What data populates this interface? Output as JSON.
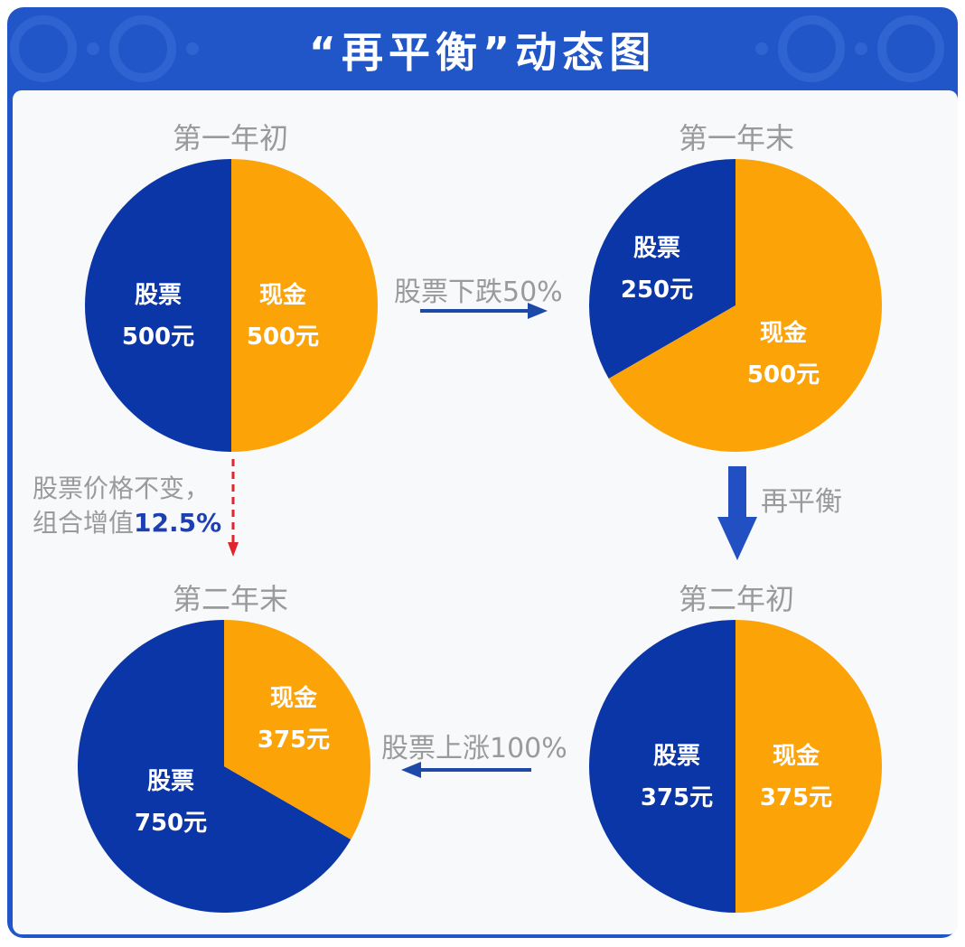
{
  "title": "“再平衡”动态图",
  "colors": {
    "stock": "#0b36a8",
    "cash": "#fba307",
    "frame": "#2156c8",
    "arrow": "#1d4aa8",
    "dashed": "#e0252d"
  },
  "panels": [
    {
      "id": "y1_start",
      "label": "第一年初",
      "slices": [
        {
          "name": "股票",
          "value": "500元",
          "amount": 500
        },
        {
          "name": "现金",
          "value": "500元",
          "amount": 500
        }
      ]
    },
    {
      "id": "y1_end",
      "label": "第一年末",
      "slices": [
        {
          "name": "股票",
          "value": "250元",
          "amount": 250
        },
        {
          "name": "现金",
          "value": "500元",
          "amount": 500
        }
      ]
    },
    {
      "id": "y2_start",
      "label": "第二年初",
      "slices": [
        {
          "name": "股票",
          "value": "375元",
          "amount": 375
        },
        {
          "name": "现金",
          "value": "375元",
          "amount": 375
        }
      ]
    },
    {
      "id": "y2_end",
      "label": "第二年末",
      "slices": [
        {
          "name": "股票",
          "value": "750元",
          "amount": 750
        },
        {
          "name": "现金",
          "value": "375元",
          "amount": 375
        }
      ]
    }
  ],
  "arrows": {
    "drop": "股票下跌50%",
    "rebalance": "再平衡",
    "rise": "股票上涨100%",
    "unchanged_line1": "股票价格不变，",
    "unchanged_line2_prefix": "组合增值",
    "unchanged_line2_value": "12.5%"
  }
}
